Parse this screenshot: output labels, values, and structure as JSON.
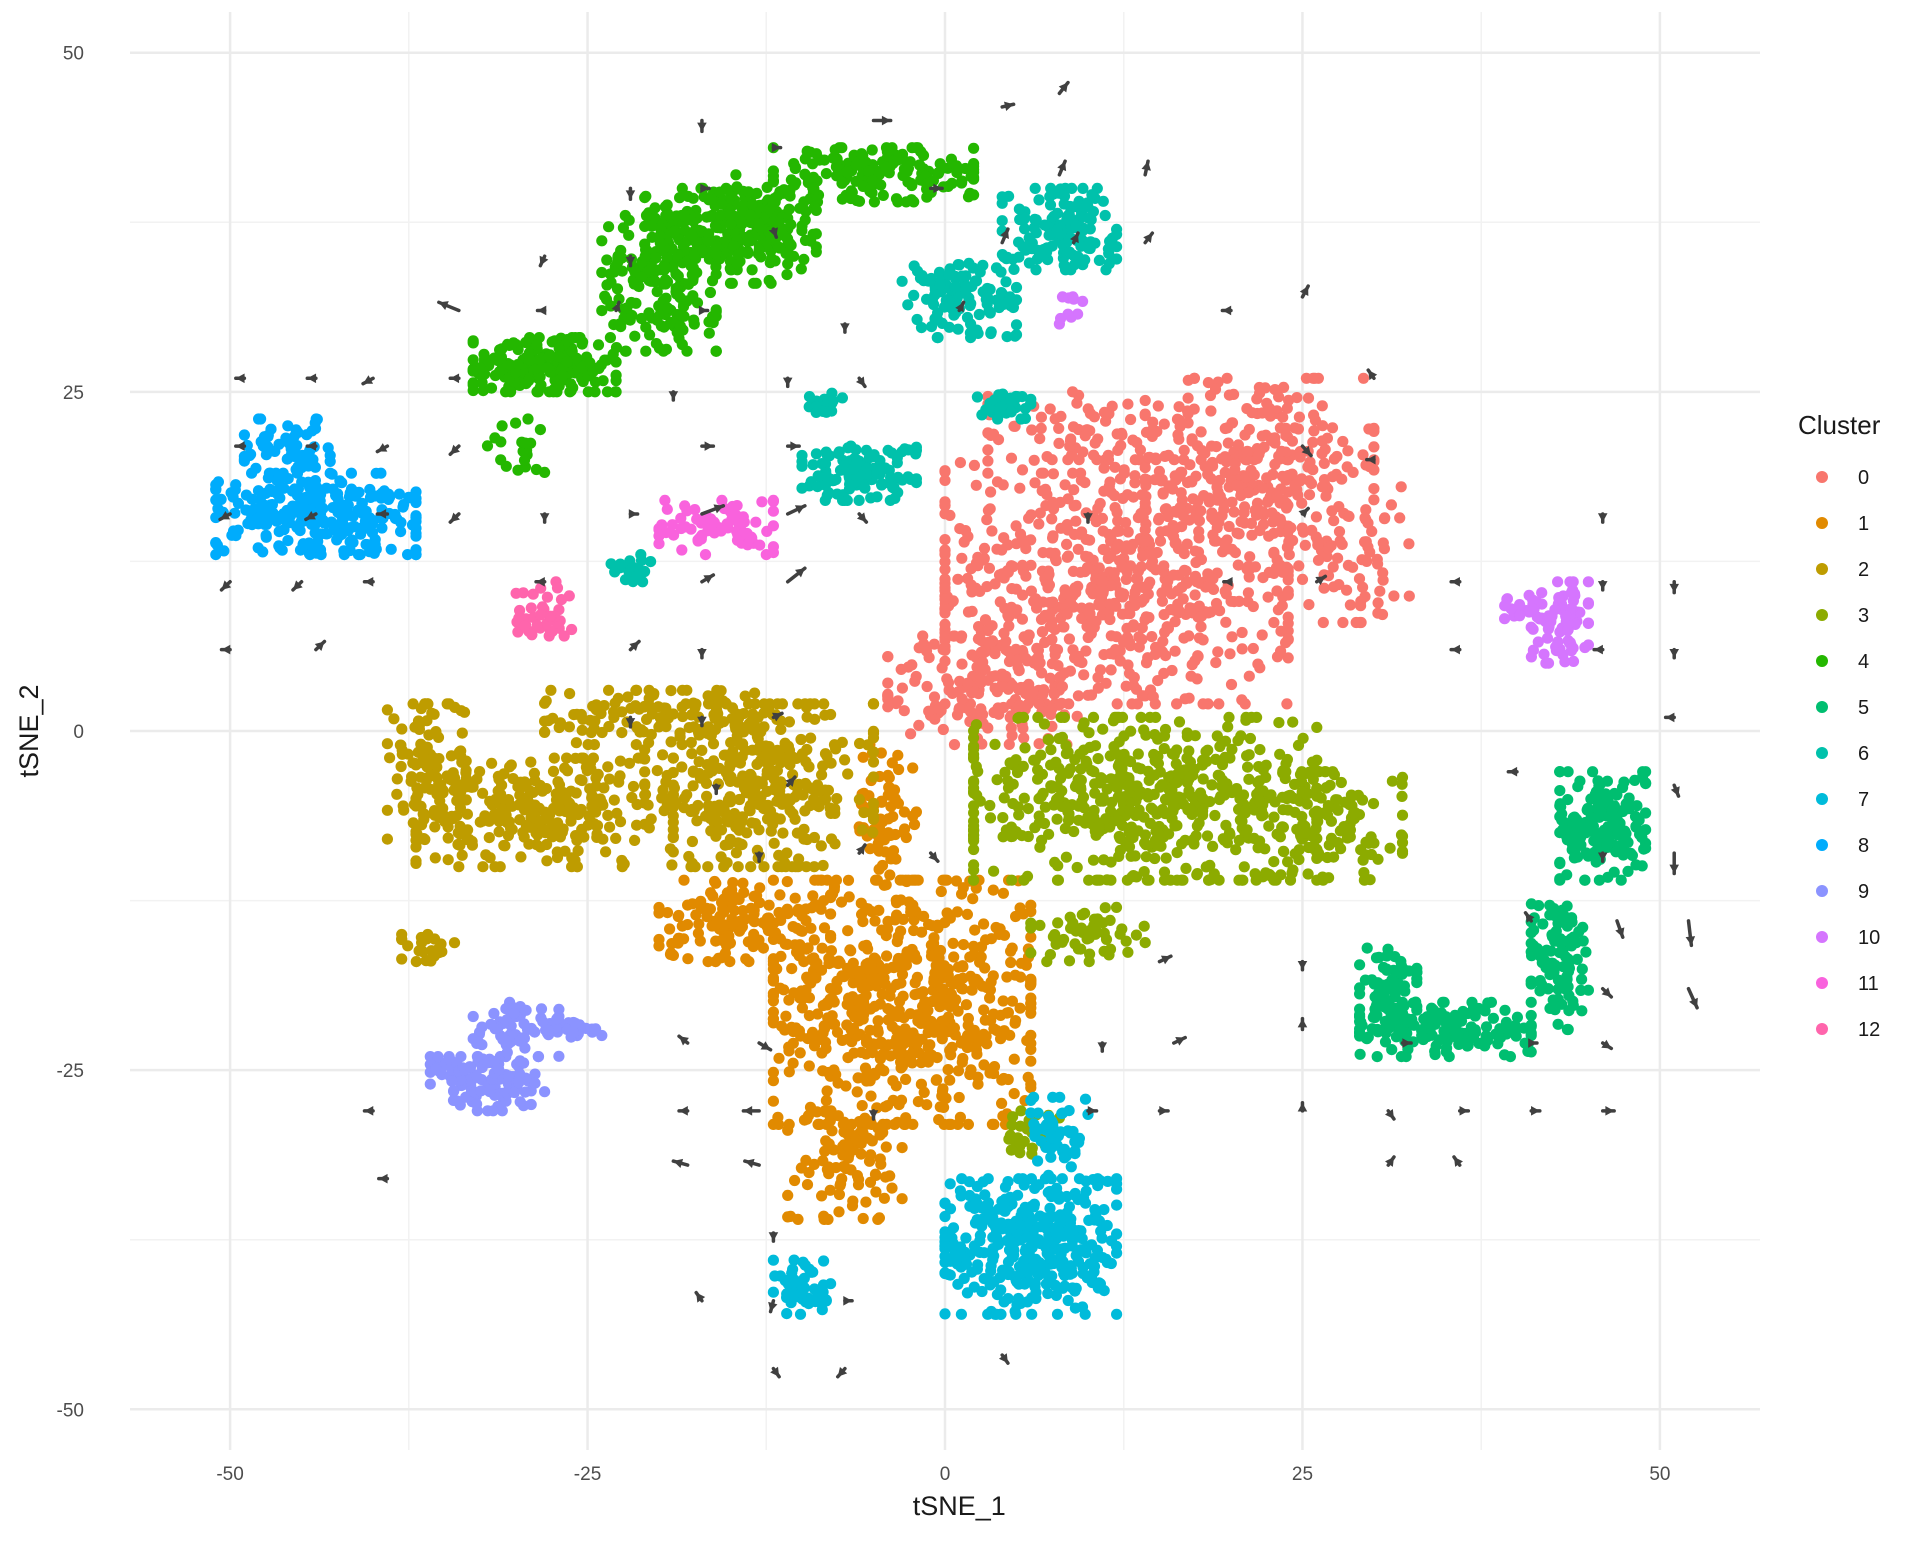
{
  "chart_data": {
    "type": "scatter",
    "title": "",
    "xlabel": "tSNE_1",
    "ylabel": "tSNE_2",
    "xlim": [
      -57,
      57
    ],
    "ylim": [
      -53,
      53
    ],
    "x_ticks": [
      -50,
      -25,
      0,
      25,
      50
    ],
    "y_ticks": [
      -50,
      -25,
      0,
      25,
      50
    ],
    "x_tick_labels": [
      "-50",
      "-25",
      "0",
      "25",
      "50"
    ],
    "y_tick_labels": [
      "-50",
      "-25",
      "0",
      "25",
      "50"
    ],
    "grid": true,
    "legend": {
      "title": "Cluster",
      "position": "right"
    },
    "series": [
      {
        "name": "0",
        "color": "#F8766D",
        "regions": [
          [
            12,
            11,
            12,
            9,
            700
          ],
          [
            22,
            20,
            8,
            6,
            260
          ],
          [
            3,
            3,
            7,
            4,
            160
          ],
          [
            28,
            13,
            5,
            5,
            80
          ],
          [
            10,
            22,
            7,
            3,
            80
          ]
        ]
      },
      {
        "name": "1",
        "color": "#E18A00",
        "regions": [
          [
            -3,
            -20,
            9,
            9,
            650
          ],
          [
            -14,
            -14,
            6,
            3,
            140
          ],
          [
            -7,
            -32,
            4,
            4,
            90
          ],
          [
            -4,
            -6,
            2,
            5,
            70
          ]
        ]
      },
      {
        "name": "2",
        "color": "#BE9C00",
        "regions": [
          [
            -28,
            -6,
            9,
            4,
            280
          ],
          [
            -13,
            -4,
            8,
            6,
            340
          ],
          [
            -36,
            -3,
            3,
            5,
            110
          ],
          [
            -20,
            1,
            8,
            2,
            120
          ],
          [
            -36,
            -16,
            2,
            1,
            25
          ]
        ]
      },
      {
        "name": "3",
        "color": "#8CAB00",
        "regions": [
          [
            14,
            -5,
            12,
            6,
            560
          ],
          [
            27,
            -7,
            5,
            4,
            120
          ],
          [
            10,
            -15,
            4,
            2,
            50
          ],
          [
            6,
            -30,
            2,
            2,
            25
          ]
        ]
      },
      {
        "name": "4",
        "color": "#24B700",
        "regions": [
          [
            -5,
            41,
            7,
            2,
            170
          ],
          [
            -16,
            37,
            5,
            3,
            180
          ],
          [
            -28,
            27,
            5,
            2,
            200
          ],
          [
            -20,
            33,
            4,
            5,
            200
          ],
          [
            -12,
            37,
            3,
            4,
            100
          ],
          [
            -30,
            21,
            2,
            2,
            20
          ]
        ]
      },
      {
        "name": "5",
        "color": "#00BE70",
        "regions": [
          [
            46,
            -7,
            3,
            4,
            180
          ],
          [
            43,
            -17,
            2,
            5,
            100
          ],
          [
            35,
            -22,
            6,
            2,
            160
          ],
          [
            31,
            -19,
            2,
            3,
            80
          ]
        ]
      },
      {
        "name": "6",
        "color": "#00C1AB",
        "regions": [
          [
            8,
            37,
            4,
            3,
            140
          ],
          [
            1,
            32,
            4,
            3,
            110
          ],
          [
            -6,
            19,
            4,
            2,
            120
          ],
          [
            4,
            24,
            2,
            1,
            40
          ],
          [
            -22,
            12,
            1.5,
            1,
            20
          ],
          [
            -8,
            24,
            1.5,
            1,
            15
          ]
        ]
      },
      {
        "name": "7",
        "color": "#00BBDA",
        "regions": [
          [
            6,
            -38,
            6,
            5,
            380
          ],
          [
            -10,
            -41,
            2,
            2,
            50
          ],
          [
            8,
            -30,
            2,
            3,
            50
          ]
        ]
      },
      {
        "name": "8",
        "color": "#00ACFC",
        "regions": [
          [
            -44,
            16,
            7,
            3,
            280
          ],
          [
            -46,
            21,
            3,
            2,
            60
          ]
        ]
      },
      {
        "name": "9",
        "color": "#8B93FF",
        "regions": [
          [
            -32,
            -26,
            4,
            2,
            120
          ],
          [
            -30,
            -22,
            3,
            2,
            60
          ],
          [
            -26,
            -22,
            2,
            1,
            20
          ]
        ]
      },
      {
        "name": "10",
        "color": "#D575FE",
        "regions": [
          [
            43,
            8,
            2,
            3,
            70
          ],
          [
            41,
            9,
            2,
            1,
            20
          ],
          [
            9,
            31,
            1,
            1,
            10
          ]
        ]
      },
      {
        "name": "11",
        "color": "#F962DD",
        "regions": [
          [
            -16,
            15,
            4,
            2,
            80
          ]
        ]
      },
      {
        "name": "12",
        "color": "#FF65AC",
        "regions": [
          [
            -28,
            9,
            2,
            2,
            40
          ]
        ]
      }
    ],
    "arrows": {
      "color": "#404040",
      "items": [
        [
          -17,
          45,
          0,
          -0.8
        ],
        [
          -5,
          45,
          1.2,
          0
        ],
        [
          4,
          46,
          0.8,
          0.2
        ],
        [
          8,
          47,
          0.6,
          0.8
        ],
        [
          14,
          41,
          0.2,
          1
        ],
        [
          -22,
          40,
          0,
          -0.8
        ],
        [
          -17,
          40,
          0.5,
          0
        ],
        [
          -12,
          43,
          0.5,
          0
        ],
        [
          -1,
          40,
          0.8,
          0
        ],
        [
          8,
          41,
          0.4,
          1
        ],
        [
          -28,
          35,
          -0.3,
          -0.7
        ],
        [
          -22,
          35,
          0,
          -0.7
        ],
        [
          -12,
          37,
          0.2,
          -0.6
        ],
        [
          4,
          36,
          0.4,
          1
        ],
        [
          9,
          36,
          0.3,
          0.7
        ],
        [
          14,
          36,
          0.5,
          0.7
        ],
        [
          -34,
          31,
          -1.4,
          0.6
        ],
        [
          -28,
          31,
          -0.5,
          0
        ],
        [
          -23,
          31,
          0.2,
          0.6
        ],
        [
          -17,
          31,
          0.4,
          0
        ],
        [
          -7,
          30,
          0,
          -0.6
        ],
        [
          1,
          31,
          0.3,
          0.6
        ],
        [
          20,
          31,
          -0.6,
          0
        ],
        [
          25,
          32,
          0.4,
          0.8
        ],
        [
          -49,
          26,
          -0.6,
          0
        ],
        [
          -44,
          26,
          -0.6,
          0
        ],
        [
          -40,
          26,
          -0.7,
          -0.4
        ],
        [
          -34,
          26,
          -0.6,
          0
        ],
        [
          -11,
          26,
          0,
          -0.6
        ],
        [
          -6,
          26,
          0.4,
          -0.6
        ],
        [
          30,
          26,
          -0.4,
          0.6
        ],
        [
          -19,
          25,
          0,
          -0.6
        ],
        [
          -49,
          21,
          -0.6,
          0
        ],
        [
          -44,
          21,
          -0.6,
          0
        ],
        [
          -39,
          21,
          -0.7,
          -0.4
        ],
        [
          -34,
          21,
          -0.6,
          -0.6
        ],
        [
          -17,
          21,
          0.8,
          0
        ],
        [
          -11,
          21,
          0.8,
          0
        ],
        [
          25,
          21,
          0.6,
          -0.7
        ],
        [
          30,
          20,
          -0.5,
          0
        ],
        [
          -50,
          16,
          -0.7,
          -0.4
        ],
        [
          -44,
          16,
          -0.7,
          -0.4
        ],
        [
          -39,
          16,
          -0.7,
          0
        ],
        [
          -34,
          16,
          -0.6,
          -0.6
        ],
        [
          -28,
          16,
          0,
          -0.6
        ],
        [
          -22,
          16,
          0.5,
          0
        ],
        [
          -17,
          16,
          1.5,
          0.6
        ],
        [
          -11,
          16,
          1.2,
          0.6
        ],
        [
          -6,
          16,
          0.5,
          -0.6
        ],
        [
          10,
          16,
          0,
          -0.6
        ],
        [
          25,
          16,
          0.4,
          0.4
        ],
        [
          46,
          16,
          0,
          -0.6
        ],
        [
          -50,
          11,
          -0.6,
          -0.6
        ],
        [
          -45,
          11,
          -0.6,
          -0.6
        ],
        [
          -40,
          11,
          -0.6,
          0
        ],
        [
          -28,
          11,
          -0.6,
          0
        ],
        [
          -17,
          11,
          0.8,
          0.5
        ],
        [
          -11,
          11,
          1.2,
          1
        ],
        [
          20,
          11,
          -0.5,
          0
        ],
        [
          26,
          11,
          0.6,
          0.4
        ],
        [
          36,
          11,
          -0.6,
          0
        ],
        [
          46,
          11,
          0,
          -0.6
        ],
        [
          51,
          11,
          0,
          -0.8
        ],
        [
          -50,
          6,
          -0.6,
          0
        ],
        [
          -44,
          6,
          0.6,
          0.6
        ],
        [
          -22,
          6,
          0.6,
          0.6
        ],
        [
          -17,
          6,
          0,
          -0.6
        ],
        [
          36,
          6,
          -0.6,
          0
        ],
        [
          46,
          6,
          -0.6,
          0
        ],
        [
          51,
          6,
          0,
          -0.6
        ],
        [
          -22,
          1,
          0,
          -0.7
        ],
        [
          -17,
          1,
          0,
          -0.6
        ],
        [
          -12,
          1,
          0.6,
          0.3
        ],
        [
          51,
          1,
          -0.6,
          0
        ],
        [
          40,
          -3,
          -0.6,
          0
        ],
        [
          -16,
          -4,
          0,
          -0.6
        ],
        [
          -11,
          -4,
          0.5,
          0.6
        ],
        [
          51,
          -4,
          0.3,
          -0.8
        ],
        [
          51,
          -9,
          0,
          -1.5
        ],
        [
          46,
          -9,
          0,
          -0.6
        ],
        [
          -13,
          -9,
          0,
          -0.6
        ],
        [
          -6,
          -9,
          0.4,
          0.6
        ],
        [
          -1,
          -9,
          0.5,
          -0.6
        ],
        [
          41,
          -14,
          -0.4,
          0.6
        ],
        [
          47,
          -14,
          0.4,
          -1.2
        ],
        [
          52,
          -14,
          0.2,
          -1.8
        ],
        [
          15,
          -17,
          0.8,
          0.4
        ],
        [
          25,
          -17,
          0,
          -0.6
        ],
        [
          46,
          -19,
          0.6,
          -0.6
        ],
        [
          52,
          -19,
          0.6,
          -1.4
        ],
        [
          -18,
          -23,
          -0.6,
          0.5
        ],
        [
          -13,
          -23,
          0.8,
          -0.5
        ],
        [
          11,
          -23,
          0,
          -0.6
        ],
        [
          16,
          -23,
          0.8,
          0.4
        ],
        [
          25,
          -22,
          0,
          0.8
        ],
        [
          41,
          -23,
          0.4,
          0
        ],
        [
          46,
          -23,
          0.6,
          -0.4
        ],
        [
          32,
          -23,
          0.6,
          0
        ],
        [
          -40,
          -28,
          -0.6,
          0
        ],
        [
          -18,
          -28,
          -0.6,
          0
        ],
        [
          -13,
          -28,
          -1.1,
          0
        ],
        [
          -5,
          -28,
          0,
          -0.6
        ],
        [
          10,
          -28,
          0.6,
          0
        ],
        [
          15,
          -28,
          0.6,
          0
        ],
        [
          25,
          -28,
          0,
          0.6
        ],
        [
          31,
          -28,
          0.4,
          -0.6
        ],
        [
          36,
          -28,
          0.6,
          0
        ],
        [
          41,
          -28,
          0.6,
          0
        ],
        [
          46,
          -28,
          0.8,
          0
        ],
        [
          -39,
          -33,
          -0.6,
          0
        ],
        [
          -18,
          -32,
          -1.0,
          0.3
        ],
        [
          -13,
          -32,
          -1.0,
          0.3
        ],
        [
          31,
          -32,
          0.4,
          0.6
        ],
        [
          36,
          -32,
          -0.4,
          0.6
        ],
        [
          -12,
          -37,
          0,
          -0.6
        ],
        [
          -17,
          -42,
          -0.4,
          0.6
        ],
        [
          -12,
          -42,
          -0.2,
          -0.8
        ],
        [
          -7,
          -42,
          0.5,
          0
        ],
        [
          4,
          -46,
          0.4,
          -0.6
        ],
        [
          -12,
          -47,
          0.4,
          -0.6
        ],
        [
          -7,
          -47,
          -0.5,
          -0.6
        ]
      ]
    }
  }
}
